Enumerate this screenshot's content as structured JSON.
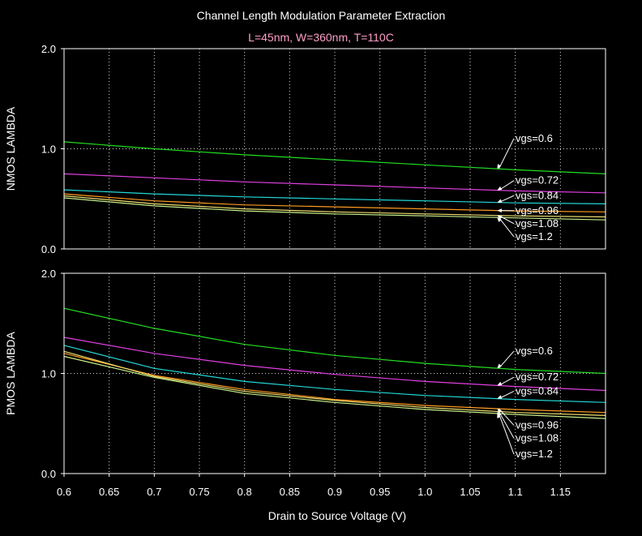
{
  "colors": {
    "background": "#000000",
    "axes": "#ffffff",
    "grid": "#d8d8d8",
    "title": "#ffffff",
    "subtitle": "#ff9ec8",
    "text": "#ffffff"
  },
  "header": {
    "title": "Channel Length Modulation Parameter Extraction",
    "subtitle": "L=45nm, W=360nm, T=110C"
  },
  "x_axis": {
    "label": "Drain to Source Voltage (V)",
    "ticks": [
      0.6,
      0.65,
      0.7,
      0.75,
      0.8,
      0.85,
      0.9,
      0.95,
      1.0,
      1.05,
      1.1,
      1.15
    ],
    "tick_labels": [
      "0.6",
      "0.65",
      "0.7",
      "0.75",
      "0.8",
      "0.85",
      "0.9",
      "0.95",
      "1.0",
      "1.05",
      "1.1",
      "1.15"
    ]
  },
  "chart_data": [
    {
      "type": "line",
      "title": "Channel Length Modulation Parameter Extraction",
      "subtitle": "L=45nm, W=360nm, T=110C",
      "xlabel": "Drain to Source Voltage (V)",
      "ylabel": "NMOS LAMBDA",
      "xlim": [
        0.6,
        1.2
      ],
      "ylim": [
        0,
        2.0
      ],
      "yticks": [
        0.0,
        1.0,
        2.0
      ],
      "ytick_labels": [
        "0.0",
        "1.0",
        "2.0"
      ],
      "grid": true,
      "x": [
        0.6,
        0.7,
        0.8,
        0.9,
        1.0,
        1.1,
        1.2
      ],
      "series": [
        {
          "name": "vgs=0.6",
          "color": "#22dd22",
          "values": [
            1.07,
            1.0,
            0.94,
            0.89,
            0.84,
            0.79,
            0.75
          ]
        },
        {
          "name": "vgs=0.72",
          "color": "#e040e0",
          "values": [
            0.75,
            0.71,
            0.67,
            0.64,
            0.61,
            0.58,
            0.56
          ]
        },
        {
          "name": "vgs=0.84",
          "color": "#22d8d8",
          "values": [
            0.59,
            0.55,
            0.52,
            0.5,
            0.48,
            0.46,
            0.45
          ]
        },
        {
          "name": "vgs=0.96",
          "color": "#ff9a20",
          "values": [
            0.55,
            0.48,
            0.44,
            0.42,
            0.4,
            0.38,
            0.37
          ]
        },
        {
          "name": "vgs=1.08",
          "color": "#f0e070",
          "values": [
            0.53,
            0.45,
            0.4,
            0.37,
            0.35,
            0.33,
            0.32
          ]
        },
        {
          "name": "vgs=1.2",
          "color": "#c8f088",
          "values": [
            0.51,
            0.43,
            0.38,
            0.35,
            0.33,
            0.31,
            0.29
          ]
        }
      ],
      "annotations": [
        {
          "text": "vgs=0.6",
          "series": "vgs=0.6",
          "x": 1.08,
          "label_y": 1.07
        },
        {
          "text": "vgs=0.72",
          "series": "vgs=0.72",
          "x": 1.08,
          "label_y": 0.65
        },
        {
          "text": "vgs=0.84",
          "series": "vgs=0.84",
          "x": 1.08,
          "label_y": 0.5
        },
        {
          "text": "vgs=0.96",
          "series": "vgs=0.96",
          "x": 1.08,
          "label_y": 0.35
        },
        {
          "text": "vgs=1.08",
          "series": "vgs=1.08",
          "x": 1.08,
          "label_y": 0.22
        },
        {
          "text": "vgs=1.2",
          "series": "vgs=1.2",
          "x": 1.08,
          "label_y": 0.09
        }
      ]
    },
    {
      "type": "line",
      "xlabel": "Drain to Source Voltage (V)",
      "ylabel": "PMOS LAMBDA",
      "xlim": [
        0.6,
        1.2
      ],
      "ylim": [
        0,
        2.0
      ],
      "yticks": [
        0.0,
        1.0,
        2.0
      ],
      "ytick_labels": [
        "0.0",
        "1.0",
        "2.0"
      ],
      "grid": true,
      "x": [
        0.6,
        0.7,
        0.8,
        0.9,
        1.0,
        1.1,
        1.2
      ],
      "series": [
        {
          "name": "vgs=0.6",
          "color": "#22dd22",
          "values": [
            1.65,
            1.45,
            1.29,
            1.18,
            1.1,
            1.04,
            1.0
          ]
        },
        {
          "name": "vgs=0.72",
          "color": "#e040e0",
          "values": [
            1.36,
            1.2,
            1.08,
            0.99,
            0.92,
            0.87,
            0.83
          ]
        },
        {
          "name": "vgs=0.84",
          "color": "#22d8d8",
          "values": [
            1.28,
            1.05,
            0.92,
            0.84,
            0.78,
            0.74,
            0.71
          ]
        },
        {
          "name": "vgs=0.96",
          "color": "#ff9a20",
          "values": [
            1.2,
            0.98,
            0.84,
            0.74,
            0.68,
            0.64,
            0.61
          ]
        },
        {
          "name": "vgs=1.08",
          "color": "#f0e070",
          "values": [
            1.22,
            0.97,
            0.82,
            0.73,
            0.66,
            0.61,
            0.58
          ]
        },
        {
          "name": "vgs=1.2",
          "color": "#c8f088",
          "values": [
            1.17,
            0.96,
            0.8,
            0.71,
            0.64,
            0.59,
            0.55
          ]
        }
      ],
      "annotations": [
        {
          "text": "vgs=0.6",
          "series": "vgs=0.6",
          "x": 1.08,
          "label_y": 1.19
        },
        {
          "text": "vgs=0.72",
          "series": "vgs=0.72",
          "x": 1.08,
          "label_y": 0.93
        },
        {
          "text": "vgs=0.84",
          "series": "vgs=0.84",
          "x": 1.08,
          "label_y": 0.79
        },
        {
          "text": "vgs=0.96",
          "series": "vgs=0.96",
          "x": 1.08,
          "label_y": 0.45
        },
        {
          "text": "vgs=1.08",
          "series": "vgs=1.08",
          "x": 1.08,
          "label_y": 0.32
        },
        {
          "text": "vgs=1.2",
          "series": "vgs=1.2",
          "x": 1.08,
          "label_y": 0.16
        }
      ]
    }
  ]
}
